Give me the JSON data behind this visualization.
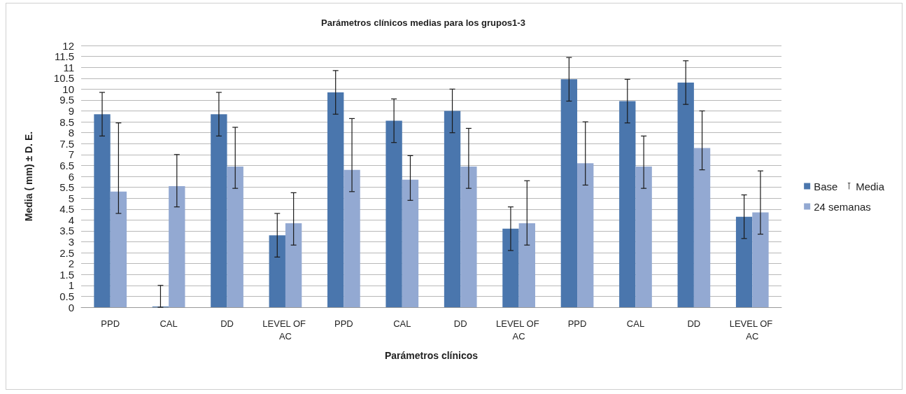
{
  "chart_data": {
    "type": "bar",
    "title": "Parámetros clínicos medias para los grupos1-3",
    "xlabel": "Parámetros clínicos",
    "ylabel": "Media ( mm) ± D. E.",
    "categories": [
      "PPD",
      "CAL",
      "DD",
      "LEVEL OF AC",
      "PPD",
      "CAL",
      "DD",
      "LEVEL OF AC",
      "PPD",
      "CAL",
      "DD",
      "LEVEL OF AC"
    ],
    "series": [
      {
        "name": "Base",
        "color": "#4a76ad",
        "values": [
          8.85,
          0,
          8.85,
          3.3,
          9.85,
          8.55,
          9.0,
          3.6,
          10.45,
          9.45,
          10.3,
          4.15
        ],
        "errors": [
          1,
          [
            0,
            1
          ],
          1,
          1,
          1,
          1,
          1,
          1,
          1,
          1,
          1,
          1
        ]
      },
      {
        "name": "Media",
        "type": "line",
        "color": "#404040",
        "values": [
          null,
          null,
          null,
          null,
          null,
          null,
          null,
          null,
          null,
          null,
          null,
          null
        ]
      },
      {
        "name": "24 semanas",
        "color": "#93a9d2",
        "values": [
          5.3,
          5.55,
          6.45,
          3.85,
          6.3,
          5.85,
          6.45,
          3.85,
          6.6,
          6.45,
          7.3,
          4.35
        ],
        "errors": [
          [
            4.3,
            8.45
          ],
          [
            4.6,
            7.0
          ],
          [
            5.45,
            8.25
          ],
          [
            2.85,
            5.25
          ],
          [
            5.3,
            8.65
          ],
          [
            4.9,
            6.95
          ],
          [
            5.45,
            8.2
          ],
          [
            2.85,
            5.8
          ],
          [
            5.6,
            8.5
          ],
          [
            5.45,
            7.85
          ],
          [
            6.3,
            9.0
          ],
          [
            3.35,
            6.25
          ]
        ]
      }
    ],
    "ylim": [
      0,
      12
    ],
    "yticks": [
      0,
      0.5,
      1,
      1.5,
      2,
      2.5,
      3,
      3.5,
      4,
      4.5,
      5,
      5.5,
      6,
      6.5,
      7,
      7.5,
      8,
      8.5,
      9,
      9.5,
      10,
      10.5,
      11,
      11.5,
      12
    ],
    "grid": "y",
    "legend": "right"
  }
}
